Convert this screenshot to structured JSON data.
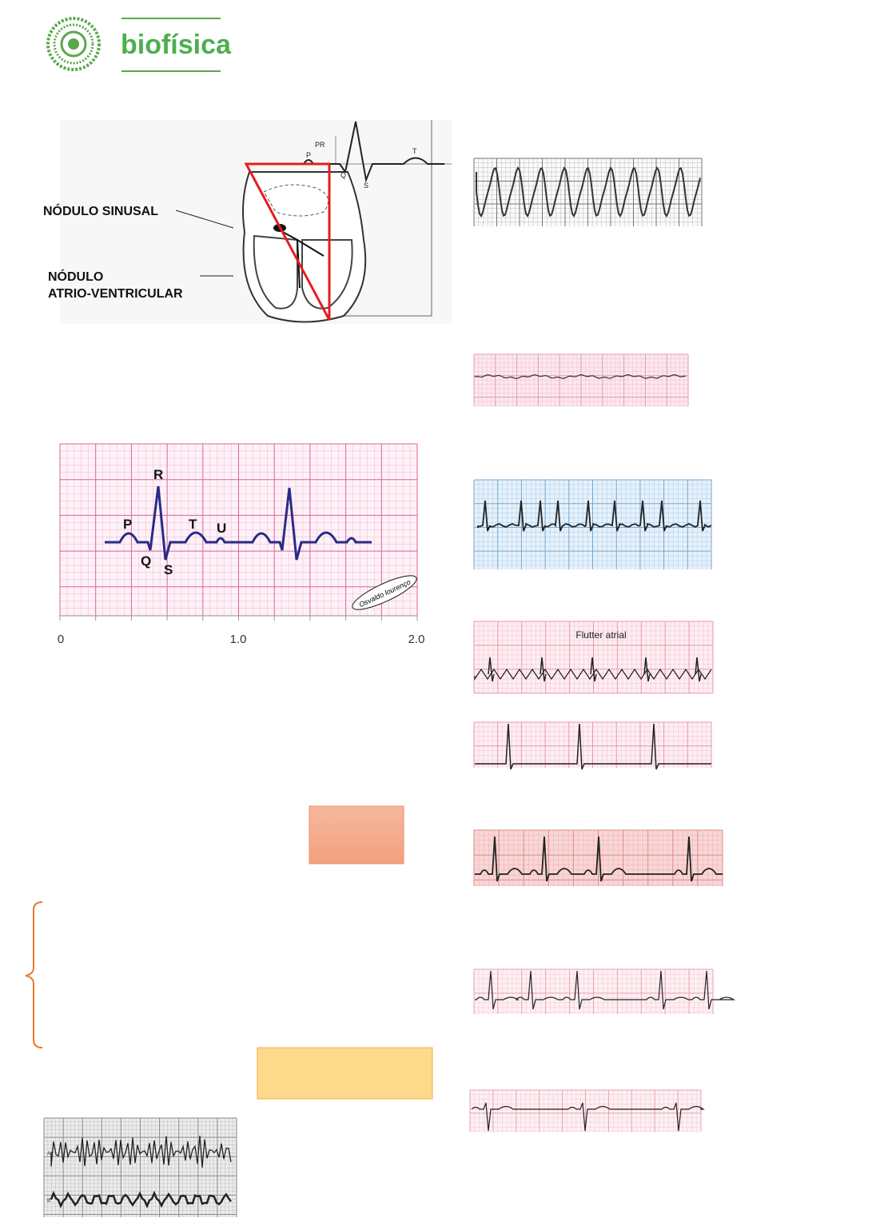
{
  "header": {
    "brand": "biofísica"
  },
  "heart_diagram": {
    "labels": [
      "NÓDULO SINUSAL",
      "NÓDULO",
      "ATRIO-VENTRICULAR"
    ],
    "wave_labels": [
      "P",
      "PR",
      "Q",
      "S",
      "T"
    ]
  },
  "ecg_diagram": {
    "wave_labels": [
      "R",
      "P",
      "T",
      "U",
      "Q",
      "S"
    ],
    "signature": "Osvaldo lourenço",
    "axis_ticks": [
      "0",
      "1.0",
      "2.0"
    ]
  },
  "strips": {
    "flutter_label": "Flutter atrial"
  },
  "bottom_strip": {
    "leads": [
      "A",
      "B"
    ]
  }
}
